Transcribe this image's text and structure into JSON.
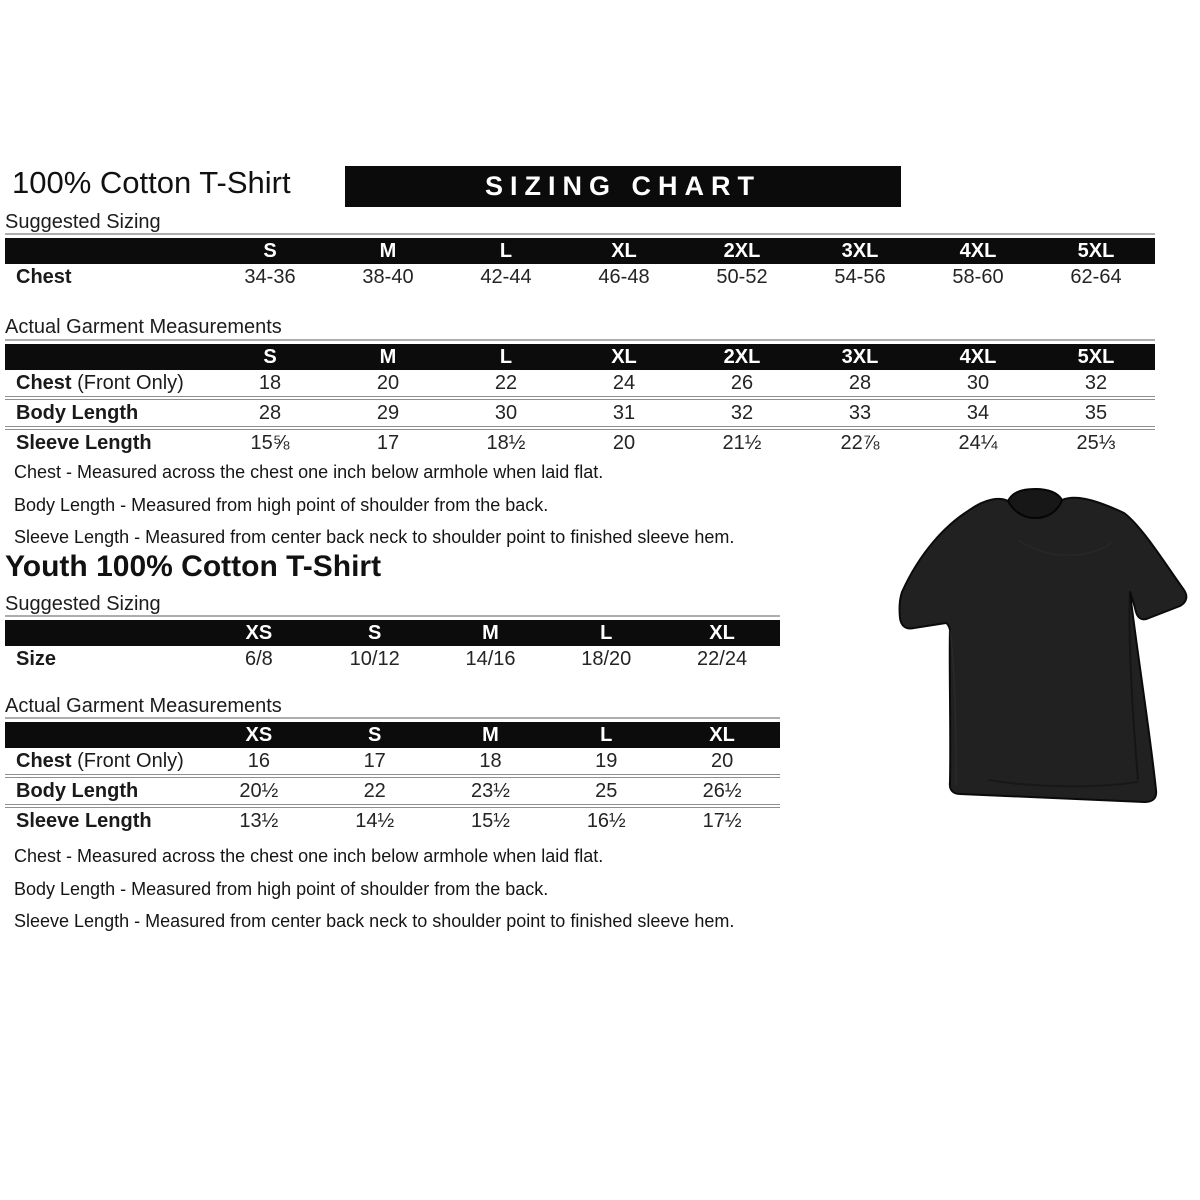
{
  "colors": {
    "header_bar": "#0c0c0c",
    "banner": "#0b0b0b",
    "separator_line": "#8f8f8f",
    "text": "#1a1a1a",
    "tshirt": "#212121"
  },
  "adult": {
    "title": "100% Cotton T-Shirt",
    "banner": "SIZING CHART",
    "suggested": {
      "label": "Suggested Sizing",
      "columns": [
        "S",
        "M",
        "L",
        "XL",
        "2XL",
        "3XL",
        "4XL",
        "5XL"
      ],
      "rows": [
        {
          "label": "Chest",
          "values": [
            "34-36",
            "38-40",
            "42-44",
            "46-48",
            "50-52",
            "54-56",
            "58-60",
            "62-64"
          ]
        }
      ]
    },
    "actual": {
      "label": "Actual Garment Measurements",
      "columns": [
        "S",
        "M",
        "L",
        "XL",
        "2XL",
        "3XL",
        "4XL",
        "5XL"
      ],
      "rows": [
        {
          "label": "Chest",
          "label_suffix": " (Front Only)",
          "values": [
            "18",
            "20",
            "22",
            "24",
            "26",
            "28",
            "30",
            "32"
          ]
        },
        {
          "label": "Body Length",
          "values": [
            "28",
            "29",
            "30",
            "31",
            "32",
            "33",
            "34",
            "35"
          ]
        },
        {
          "label": "Sleeve Length",
          "values": [
            "15⅝",
            "17",
            "18½",
            "20",
            "21½",
            "22⅞",
            "24¼",
            "25⅓"
          ]
        }
      ]
    },
    "notes": [
      "Chest - Measured across the chest one inch below armhole when laid flat.",
      "Body Length - Measured from high point of shoulder from the back.",
      "Sleeve Length - Measured from center back neck to shoulder point to finished sleeve hem."
    ]
  },
  "youth": {
    "title": "Youth 100% Cotton T-Shirt",
    "suggested": {
      "label": "Suggested Sizing",
      "columns": [
        "XS",
        "S",
        "M",
        "L",
        "XL"
      ],
      "rows": [
        {
          "label": "Size",
          "values": [
            "6/8",
            "10/12",
            "14/16",
            "18/20",
            "22/24"
          ]
        }
      ]
    },
    "actual": {
      "label": "Actual Garment Measurements",
      "columns": [
        "XS",
        "S",
        "M",
        "L",
        "XL"
      ],
      "rows": [
        {
          "label": "Chest",
          "label_suffix": " (Front Only)",
          "values": [
            "16",
            "17",
            "18",
            "19",
            "20"
          ]
        },
        {
          "label": "Body Length",
          "values": [
            "20½",
            "22",
            "23½",
            "25",
            "26½"
          ]
        },
        {
          "label": "Sleeve Length",
          "values": [
            "13½",
            "14½",
            "15½",
            "16½",
            "17½"
          ]
        }
      ]
    },
    "notes": [
      "Chest - Measured across the chest one inch below armhole when laid flat.",
      "Body Length - Measured from high point of shoulder from the back.",
      "Sleeve Length - Measured from center back neck to shoulder point to finished sleeve hem."
    ]
  },
  "tshirt_image": {
    "icon": "black-tshirt-graphic",
    "color": "#212121"
  }
}
